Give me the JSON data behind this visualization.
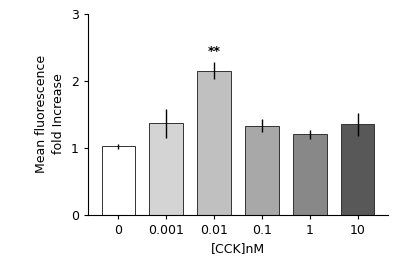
{
  "categories": [
    "0",
    "0.001",
    "0.01",
    "0.1",
    "1",
    "10"
  ],
  "values": [
    1.02,
    1.36,
    2.15,
    1.33,
    1.2,
    1.35
  ],
  "errors": [
    0.04,
    0.22,
    0.13,
    0.1,
    0.07,
    0.17
  ],
  "bar_colors": [
    "#ffffff",
    "#d4d4d4",
    "#c0c0c0",
    "#a8a8a8",
    "#888888",
    "#585858"
  ],
  "bar_edgecolors": [
    "#333333",
    "#333333",
    "#333333",
    "#333333",
    "#333333",
    "#333333"
  ],
  "ylabel": "Mean fluorescence\nfold Increase",
  "xlabel": "[CCK]nM",
  "ylim": [
    0,
    3
  ],
  "yticks": [
    0,
    1,
    2,
    3
  ],
  "significance_bar_index": 2,
  "significance_text": "**",
  "background_color": "#ffffff",
  "label_fontsize": 9,
  "tick_fontsize": 9
}
